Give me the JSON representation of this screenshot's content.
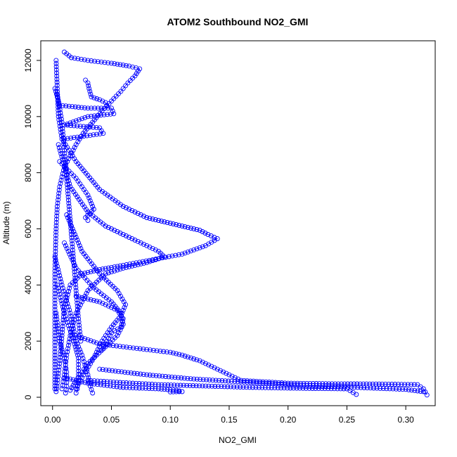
{
  "chart_data": {
    "type": "scatter",
    "title": "ATOM2 Southbound NO2_GMI",
    "xlabel": "NO2_GMI",
    "ylabel": "Altitude (m)",
    "xlim": [
      -0.01,
      0.325
    ],
    "ylim": [
      -300,
      12700
    ],
    "xticks": [
      {
        "value": 0.0,
        "label": "0.00"
      },
      {
        "value": 0.05,
        "label": "0.05"
      },
      {
        "value": 0.1,
        "label": "0.10"
      },
      {
        "value": 0.15,
        "label": "0.15"
      },
      {
        "value": 0.2,
        "label": "0.20"
      },
      {
        "value": 0.25,
        "label": "0.25"
      },
      {
        "value": 0.3,
        "label": "0.30"
      }
    ],
    "yticks": [
      {
        "value": 0,
        "label": "0"
      },
      {
        "value": 2000,
        "label": "2000"
      },
      {
        "value": 4000,
        "label": "4000"
      },
      {
        "value": 6000,
        "label": "6000"
      },
      {
        "value": 8000,
        "label": "8000"
      },
      {
        "value": 10000,
        "label": "10000"
      },
      {
        "value": 12000,
        "label": "12000"
      }
    ],
    "series_color": "#0000ff",
    "marker": "open-circle",
    "grid": false,
    "profiles": [
      {
        "points": [
          [
            0.01,
            12300
          ],
          [
            0.016,
            12100
          ],
          [
            0.03,
            12000
          ],
          [
            0.05,
            11900
          ],
          [
            0.065,
            11800
          ],
          [
            0.074,
            11700
          ],
          [
            0.07,
            11450
          ],
          [
            0.064,
            11200
          ],
          [
            0.058,
            10900
          ],
          [
            0.05,
            10550
          ],
          [
            0.042,
            10200
          ],
          [
            0.034,
            9800
          ],
          [
            0.026,
            9400
          ],
          [
            0.02,
            9000
          ],
          [
            0.015,
            8600
          ],
          [
            0.01,
            8200
          ],
          [
            0.006,
            7500
          ],
          [
            0.004,
            6800
          ],
          [
            0.003,
            6000
          ],
          [
            0.002,
            4500
          ],
          [
            0.002,
            3000
          ],
          [
            0.002,
            1500
          ],
          [
            0.002,
            300
          ]
        ]
      },
      {
        "points": [
          [
            0.003,
            12000
          ],
          [
            0.004,
            11000
          ],
          [
            0.005,
            10000
          ],
          [
            0.008,
            9200
          ],
          [
            0.02,
            8400
          ],
          [
            0.04,
            7400
          ],
          [
            0.06,
            6800
          ],
          [
            0.08,
            6400
          ],
          [
            0.1,
            6200
          ],
          [
            0.115,
            6050
          ],
          [
            0.125,
            5950
          ],
          [
            0.132,
            5800
          ],
          [
            0.14,
            5650
          ],
          [
            0.13,
            5400
          ],
          [
            0.11,
            5100
          ],
          [
            0.085,
            4900
          ],
          [
            0.06,
            4700
          ],
          [
            0.04,
            4550
          ],
          [
            0.025,
            4400
          ],
          [
            0.015,
            4000
          ],
          [
            0.01,
            3200
          ],
          [
            0.008,
            2200
          ],
          [
            0.006,
            1200
          ],
          [
            0.004,
            500
          ],
          [
            0.003,
            200
          ]
        ]
      },
      {
        "points": [
          [
            0.005,
            9000
          ],
          [
            0.015,
            7500
          ],
          [
            0.03,
            6600
          ],
          [
            0.045,
            6100
          ],
          [
            0.06,
            5800
          ],
          [
            0.075,
            5500
          ],
          [
            0.09,
            5200
          ],
          [
            0.095,
            5000
          ],
          [
            0.08,
            4800
          ],
          [
            0.06,
            4600
          ],
          [
            0.045,
            4400
          ],
          [
            0.03,
            3800
          ],
          [
            0.02,
            3000
          ],
          [
            0.015,
            2200
          ],
          [
            0.012,
            1500
          ],
          [
            0.01,
            800
          ],
          [
            0.008,
            300
          ]
        ]
      },
      {
        "points": [
          [
            0.01,
            5500
          ],
          [
            0.02,
            4600
          ],
          [
            0.035,
            3900
          ],
          [
            0.05,
            3400
          ],
          [
            0.058,
            3000
          ],
          [
            0.06,
            2600
          ],
          [
            0.055,
            2200
          ],
          [
            0.045,
            1800
          ],
          [
            0.03,
            1200
          ],
          [
            0.02,
            600
          ],
          [
            0.015,
            250
          ]
        ]
      },
      {
        "points": [
          [
            0.012,
            6500
          ],
          [
            0.025,
            5200
          ],
          [
            0.04,
            4400
          ],
          [
            0.055,
            3800
          ],
          [
            0.062,
            3300
          ],
          [
            0.058,
            2900
          ],
          [
            0.05,
            2500
          ],
          [
            0.042,
            2000
          ],
          [
            0.035,
            1400
          ],
          [
            0.025,
            700
          ],
          [
            0.02,
            300
          ]
        ]
      },
      {
        "points": [
          [
            0.02,
            2200
          ],
          [
            0.04,
            1900
          ],
          [
            0.06,
            1800
          ],
          [
            0.08,
            1700
          ],
          [
            0.1,
            1600
          ],
          [
            0.11,
            1500
          ],
          [
            0.125,
            1300
          ],
          [
            0.14,
            1000
          ],
          [
            0.15,
            800
          ],
          [
            0.16,
            600
          ],
          [
            0.2,
            500
          ],
          [
            0.24,
            480
          ],
          [
            0.28,
            470
          ],
          [
            0.31,
            450
          ],
          [
            0.315,
            300
          ],
          [
            0.318,
            80
          ]
        ]
      },
      {
        "points": [
          [
            0.04,
            1000
          ],
          [
            0.08,
            800
          ],
          [
            0.12,
            650
          ],
          [
            0.16,
            550
          ],
          [
            0.2,
            450
          ],
          [
            0.24,
            380
          ],
          [
            0.27,
            330
          ],
          [
            0.3,
            280
          ],
          [
            0.315,
            200
          ]
        ]
      },
      {
        "points": [
          [
            0.03,
            600
          ],
          [
            0.06,
            520
          ],
          [
            0.09,
            450
          ],
          [
            0.13,
            400
          ],
          [
            0.17,
            350
          ],
          [
            0.21,
            320
          ],
          [
            0.25,
            300
          ],
          [
            0.258,
            100
          ]
        ]
      },
      {
        "points": [
          [
            0.01,
            700
          ],
          [
            0.03,
            500
          ],
          [
            0.06,
            350
          ],
          [
            0.09,
            300
          ],
          [
            0.105,
            250
          ],
          [
            0.11,
            200
          ],
          [
            0.1,
            190
          ]
        ]
      },
      {
        "points": [
          [
            0.002,
            5000
          ],
          [
            0.008,
            4000
          ],
          [
            0.015,
            3000
          ],
          [
            0.02,
            2000
          ],
          [
            0.025,
            1500
          ],
          [
            0.03,
            800
          ],
          [
            0.032,
            400
          ],
          [
            0.034,
            150
          ]
        ]
      },
      {
        "points": [
          [
            0.004,
            4000
          ],
          [
            0.01,
            3000
          ],
          [
            0.018,
            2000
          ],
          [
            0.022,
            1400
          ],
          [
            0.022,
            700
          ],
          [
            0.021,
            300
          ],
          [
            0.02,
            150
          ]
        ]
      },
      {
        "points": [
          [
            0.003,
            3000
          ],
          [
            0.006,
            2000
          ],
          [
            0.01,
            1400
          ],
          [
            0.012,
            900
          ],
          [
            0.012,
            400
          ],
          [
            0.011,
            150
          ]
        ]
      },
      {
        "points": [
          [
            0.004,
            10800
          ],
          [
            0.008,
            9800
          ],
          [
            0.01,
            8800
          ],
          [
            0.012,
            7800
          ],
          [
            0.014,
            6800
          ],
          [
            0.016,
            5800
          ],
          [
            0.018,
            4800
          ],
          [
            0.02,
            3800
          ],
          [
            0.022,
            2800
          ],
          [
            0.024,
            2000
          ]
        ]
      },
      {
        "points": [
          [
            0.002,
            11000
          ],
          [
            0.006,
            10400
          ],
          [
            0.03,
            10300
          ],
          [
            0.05,
            10300
          ],
          [
            0.052,
            10100
          ],
          [
            0.03,
            10000
          ],
          [
            0.01,
            9700
          ],
          [
            0.04,
            9600
          ],
          [
            0.043,
            9400
          ],
          [
            0.01,
            9200
          ]
        ]
      },
      {
        "points": [
          [
            0.028,
            11300
          ],
          [
            0.03,
            11200
          ],
          [
            0.031,
            11000
          ],
          [
            0.033,
            10700
          ],
          [
            0.04,
            10600
          ],
          [
            0.045,
            10500
          ],
          [
            0.046,
            10400
          ]
        ]
      },
      {
        "points": [
          [
            0.006,
            8400
          ],
          [
            0.02,
            7800
          ],
          [
            0.03,
            7200
          ],
          [
            0.035,
            6700
          ],
          [
            0.028,
            6400
          ],
          [
            0.03,
            6300
          ]
        ]
      },
      {
        "points": [
          [
            0.02,
            3600
          ],
          [
            0.04,
            3400
          ],
          [
            0.055,
            3100
          ],
          [
            0.06,
            2800
          ],
          [
            0.058,
            2500
          ],
          [
            0.05,
            2300
          ],
          [
            0.045,
            1900
          ],
          [
            0.042,
            1700
          ]
        ]
      }
    ]
  }
}
